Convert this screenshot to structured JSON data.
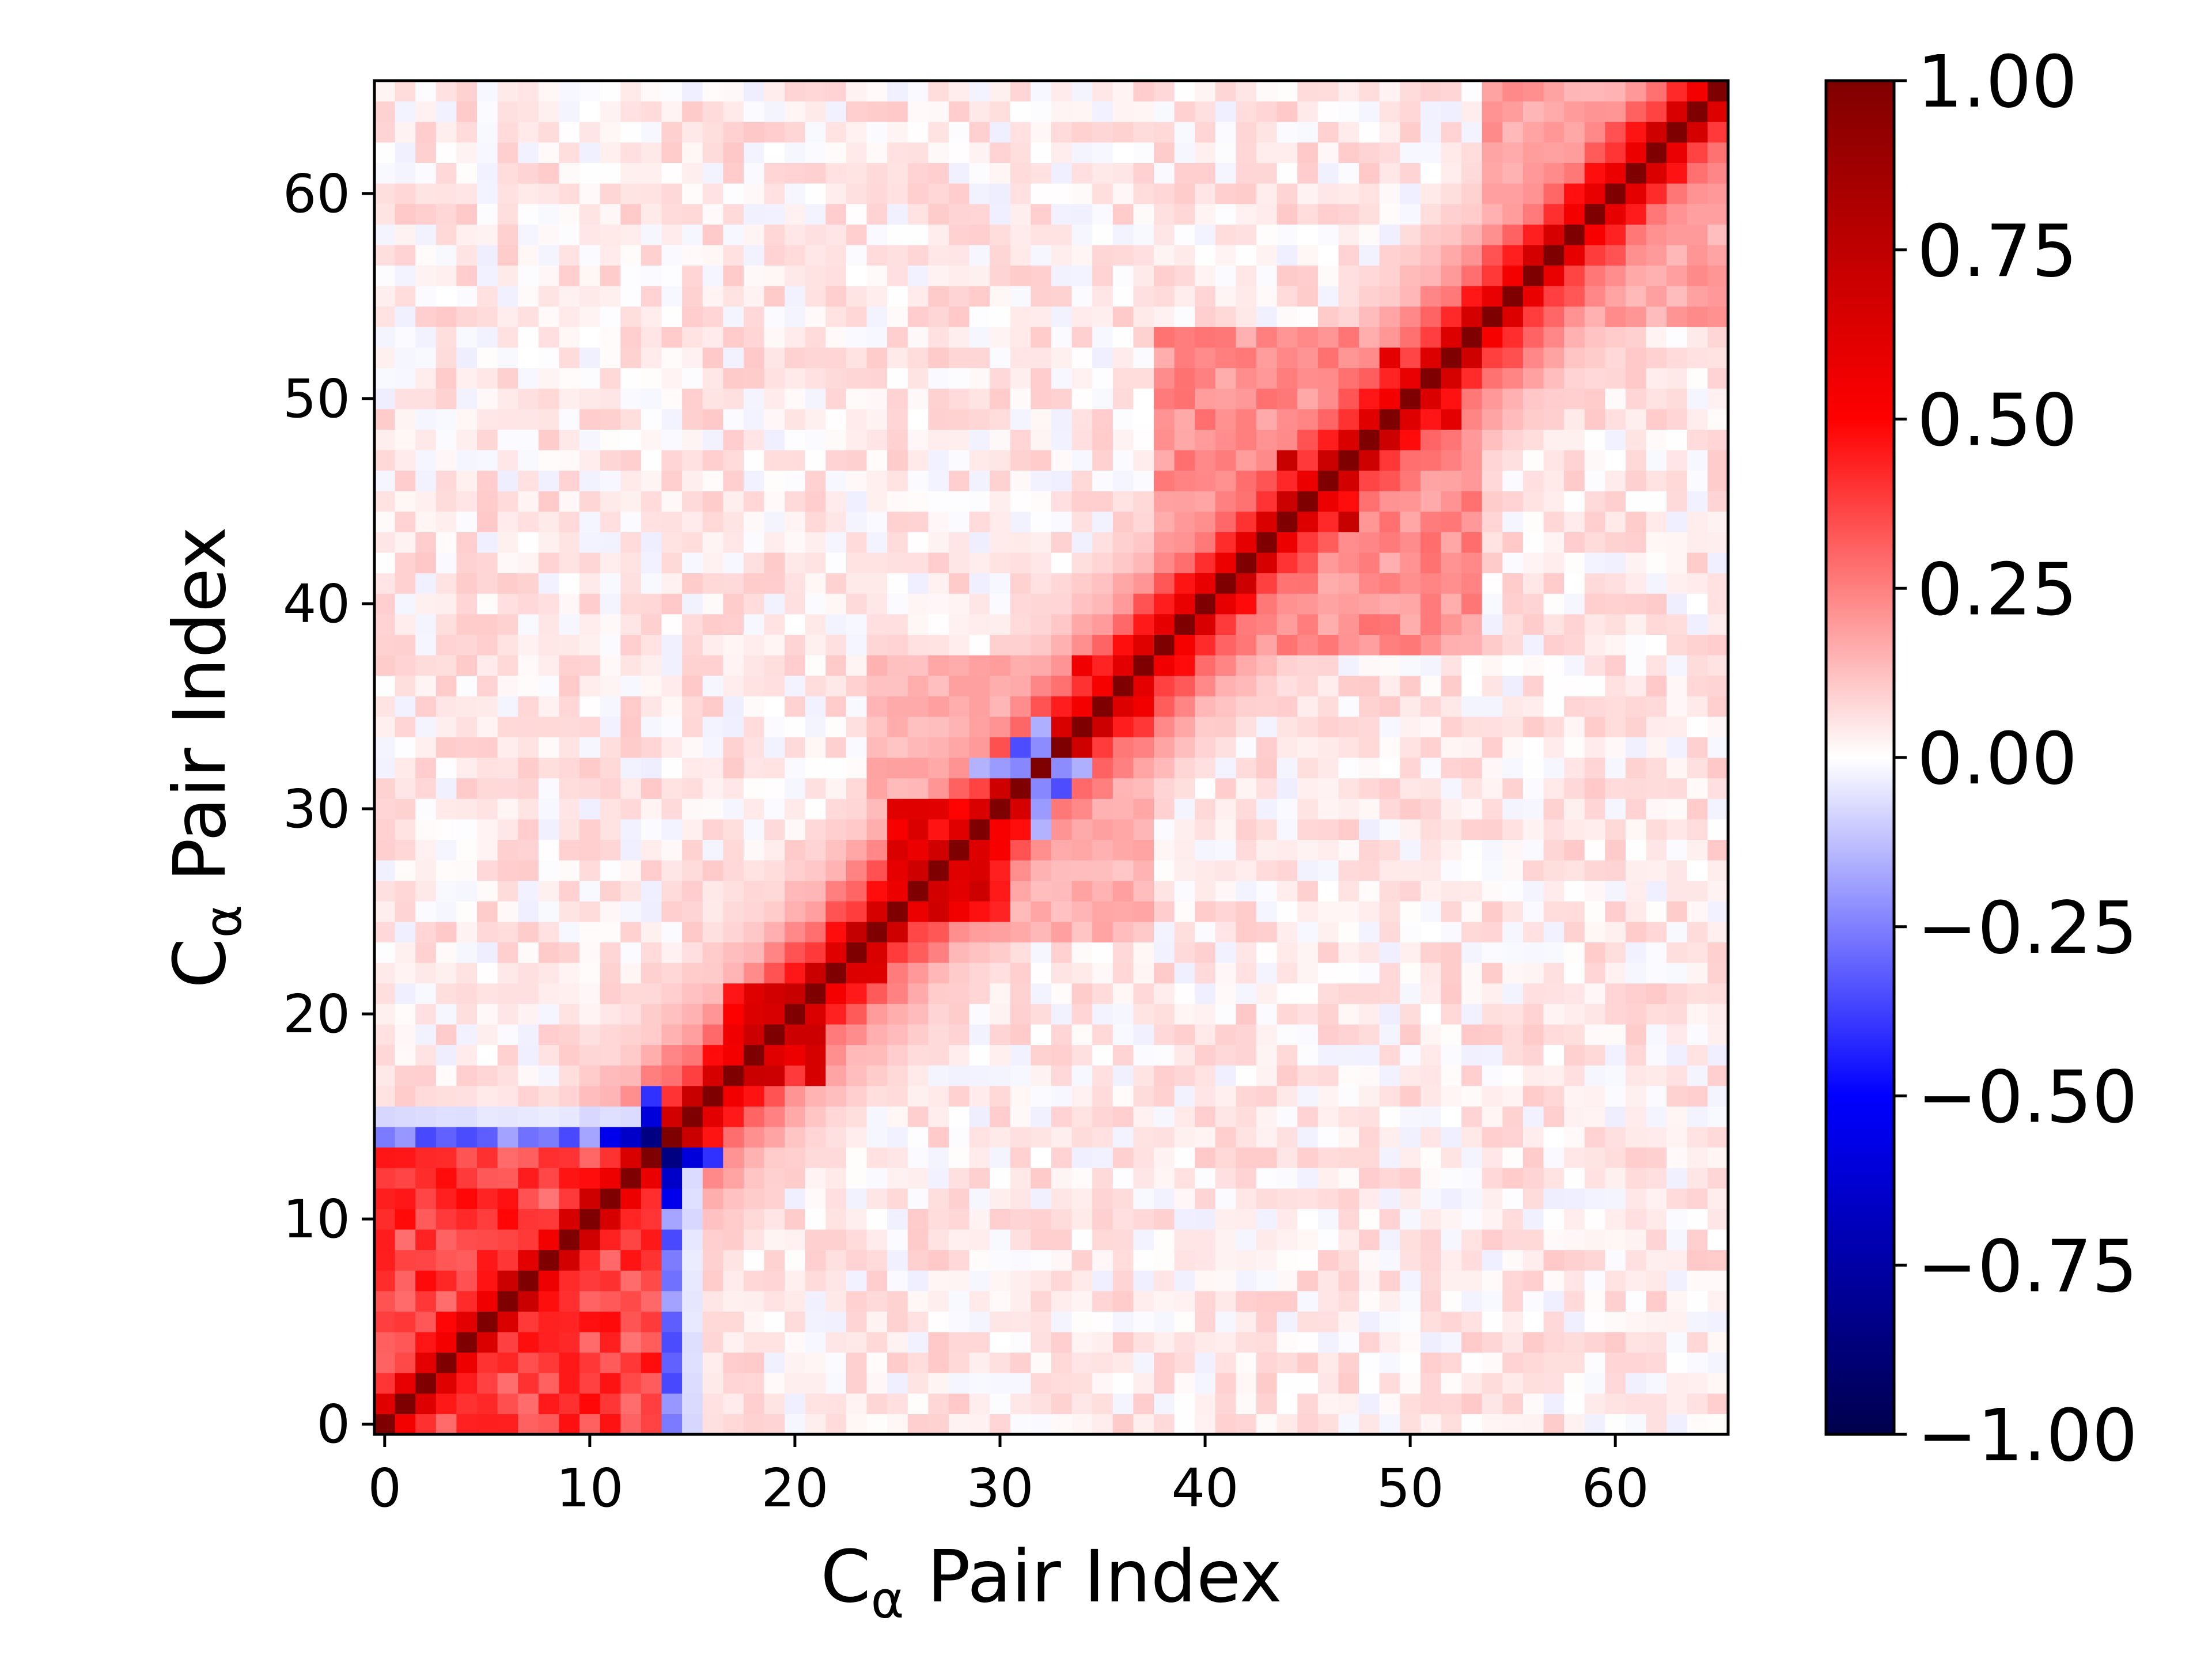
{
  "chart_data": {
    "type": "heatmap",
    "title": "",
    "xlabel": "C",
    "xlabel_subscript": "α",
    "xlabel_rest": " Pair Index",
    "ylabel": "C",
    "ylabel_subscript": "α",
    "ylabel_rest": " Pair Index",
    "n": 66,
    "xlim": [
      -0.5,
      65.5
    ],
    "ylim": [
      -0.5,
      65.5
    ],
    "x_ticks": [
      0,
      10,
      20,
      30,
      40,
      50,
      60
    ],
    "y_ticks": [
      0,
      10,
      20,
      30,
      40,
      50,
      60
    ],
    "x_tick_labels": [
      "0",
      "10",
      "20",
      "30",
      "40",
      "50",
      "60"
    ],
    "y_tick_labels": [
      "0",
      "10",
      "20",
      "30",
      "40",
      "50",
      "60"
    ],
    "colormap": "seismic",
    "vmin": -1.0,
    "vmax": 1.0,
    "colorbar_ticks": [
      1.0,
      0.75,
      0.5,
      0.25,
      0.0,
      -0.25,
      -0.5,
      -0.75,
      -1.0
    ],
    "colorbar_tick_labels": [
      "1.00",
      "0.75",
      "0.50",
      "0.25",
      "0.00",
      "−0.25",
      "−0.50",
      "−0.75",
      "−1.00"
    ],
    "diagonal_value": 1.0,
    "background_value": 0.03,
    "blocks": [
      {
        "from": 0,
        "to": 13,
        "value": 0.38
      },
      {
        "from": 17,
        "to": 21,
        "value": 0.55
      },
      {
        "from": 22,
        "to": 24,
        "value": 0.62
      },
      {
        "from": 25,
        "to": 30,
        "value": 0.55
      },
      {
        "from": 34,
        "to": 37,
        "value": 0.45
      },
      {
        "from": 38,
        "to": 53,
        "value": 0.22
      },
      {
        "from": 54,
        "to": 65,
        "value": 0.18
      },
      {
        "from": 24,
        "to": 37,
        "value": 0.15
      },
      {
        "from": 0,
        "to": 16,
        "value": 0.05
      },
      {
        "from": 2,
        "to": 12,
        "value": 0.12
      }
    ],
    "diagonal_decay": [
      1.0,
      0.62,
      0.42,
      0.3,
      0.22,
      0.16,
      0.12,
      0.09,
      0.07
    ],
    "anticorrelated_rows": [
      {
        "row": 14,
        "from": 0,
        "to": 13,
        "value": -0.28
      },
      {
        "row": 15,
        "from": 0,
        "to": 13,
        "value": -0.06
      },
      {
        "row": 13,
        "from": 14,
        "to": 16,
        "value": -0.4
      },
      {
        "row": 32,
        "from": 29,
        "to": 34,
        "value": -0.25
      }
    ],
    "strong_cells": [
      {
        "x": 14,
        "y": 13,
        "value": -0.85
      },
      {
        "x": 13,
        "y": 14,
        "value": -0.85
      },
      {
        "x": 14,
        "y": 12,
        "value": -0.65
      },
      {
        "x": 12,
        "y": 14,
        "value": -0.65
      },
      {
        "x": 11,
        "y": 14,
        "value": -0.55
      },
      {
        "x": 14,
        "y": 11,
        "value": -0.55
      },
      {
        "x": 15,
        "y": 13,
        "value": -0.6
      },
      {
        "x": 13,
        "y": 15,
        "value": -0.6
      },
      {
        "x": 31,
        "y": 33,
        "value": -0.35
      },
      {
        "x": 33,
        "y": 31,
        "value": -0.35
      },
      {
        "x": 44,
        "y": 47,
        "value": 0.72
      },
      {
        "x": 47,
        "y": 44,
        "value": 0.72
      },
      {
        "x": 49,
        "y": 52,
        "value": 0.6
      },
      {
        "x": 52,
        "y": 49,
        "value": 0.6
      }
    ]
  }
}
